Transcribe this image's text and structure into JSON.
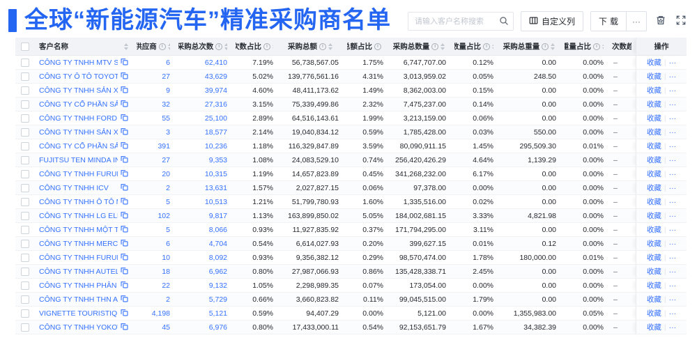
{
  "title": "全球“新能源汽车”精准采购商名单",
  "colors": {
    "accent": "#2466F2",
    "link": "#3370FF",
    "header_bg": "#f1f3f6"
  },
  "toolbar": {
    "search_placeholder": "请输入客户名称搜索",
    "customize_columns_label": "自定义列",
    "download_label": "下载",
    "more_label": "···"
  },
  "table": {
    "columns": [
      {
        "key": "name",
        "label": "客户名称",
        "info": false,
        "sort": true,
        "align": "left"
      },
      {
        "key": "suppliers",
        "label": "供应商",
        "info": true,
        "sort": true,
        "align": "right",
        "link": true
      },
      {
        "key": "purchases",
        "label": "采购总次数",
        "info": true,
        "sort": true,
        "align": "right",
        "link": true
      },
      {
        "key": "purchases_pct",
        "label": "次数占比",
        "info": true,
        "sort": true,
        "align": "right"
      },
      {
        "key": "amount",
        "label": "采购总额",
        "info": true,
        "sort": true,
        "align": "right"
      },
      {
        "key": "amount_pct",
        "label": "总额占比",
        "info": true,
        "sort": true,
        "align": "right"
      },
      {
        "key": "quantity",
        "label": "采购总数量",
        "info": true,
        "sort": true,
        "align": "right"
      },
      {
        "key": "quantity_pct",
        "label": "数量占比",
        "info": true,
        "sort": true,
        "align": "right"
      },
      {
        "key": "weight",
        "label": "采购总重量",
        "info": true,
        "sort": true,
        "align": "right"
      },
      {
        "key": "weight_pct",
        "label": "重量占比",
        "info": true,
        "sort": true,
        "align": "right"
      },
      {
        "key": "trend",
        "label": "次数趋势",
        "info": false,
        "sort": false,
        "align": "left"
      },
      {
        "key": "actions",
        "label": "操作",
        "info": false,
        "sort": false,
        "align": "center"
      }
    ],
    "row_actions": {
      "favorite_label": "收藏",
      "more_label": "···"
    },
    "rows": [
      {
        "name": "CÔNG TY TNHH MTV SẢN XUẤ...",
        "suppliers": "6",
        "purchases": "62,410",
        "purchases_pct": "7.19%",
        "amount": "56,738,567.05",
        "amount_pct": "1.75%",
        "quantity": "6,747,707.00",
        "quantity_pct": "0.12%",
        "weight": "0.00",
        "weight_pct": "0.00%",
        "trend": "–"
      },
      {
        "name": "CÔNG TY Ô TÔ TOYOTA VIỆT ...",
        "suppliers": "27",
        "purchases": "43,629",
        "purchases_pct": "5.02%",
        "amount": "139,776,561.16",
        "amount_pct": "4.31%",
        "quantity": "3,013,959.02",
        "quantity_pct": "0.05%",
        "weight": "248.50",
        "weight_pct": "0.00%",
        "trend": "–"
      },
      {
        "name": "CÔNG TY TNHH SẢN XUẤT VÀ ...",
        "suppliers": "9",
        "purchases": "39,974",
        "purchases_pct": "4.60%",
        "amount": "48,411,173.62",
        "amount_pct": "1.49%",
        "quantity": "8,362,003.00",
        "quantity_pct": "0.15%",
        "weight": "0.00",
        "weight_pct": "0.00%",
        "trend": "–"
      },
      {
        "name": "CÔNG TY CỔ PHẦN SẢN XUẤT...",
        "suppliers": "32",
        "purchases": "27,316",
        "purchases_pct": "3.15%",
        "amount": "75,339,499.86",
        "amount_pct": "2.32%",
        "quantity": "7,475,237.00",
        "quantity_pct": "0.14%",
        "weight": "0.00",
        "weight_pct": "0.00%",
        "trend": "–"
      },
      {
        "name": "CÔNG TY TNHH FORD VIỆT NAM",
        "suppliers": "55",
        "purchases": "25,100",
        "purchases_pct": "2.89%",
        "amount": "64,516,143.61",
        "amount_pct": "1.99%",
        "quantity": "3,213,159.00",
        "quantity_pct": "0.06%",
        "weight": "0.00",
        "weight_pct": "0.00%",
        "trend": "–"
      },
      {
        "name": "CÔNG TY TNHH SẢN XUẤT VÀ ...",
        "suppliers": "3",
        "purchases": "18,577",
        "purchases_pct": "2.14%",
        "amount": "19,040,834.12",
        "amount_pct": "0.59%",
        "quantity": "1,785,428.00",
        "quantity_pct": "0.03%",
        "weight": "550.00",
        "weight_pct": "0.00%",
        "trend": "–"
      },
      {
        "name": "CÔNG TY CỔ PHẦN SẢN XUẤT...",
        "suppliers": "391",
        "purchases": "10,236",
        "purchases_pct": "1.18%",
        "amount": "116,329,847.89",
        "amount_pct": "3.59%",
        "quantity": "80,090,911.15",
        "quantity_pct": "1.45%",
        "weight": "295,509.30",
        "weight_pct": "0.01%",
        "trend": "–"
      },
      {
        "name": "FUJITSU TEN MINDA INDIA PVT...",
        "suppliers": "27",
        "purchases": "9,353",
        "purchases_pct": "1.08%",
        "amount": "24,083,529.10",
        "amount_pct": "0.74%",
        "quantity": "256,420,426.29",
        "quantity_pct": "4.64%",
        "weight": "1,139.29",
        "weight_pct": "0.00%",
        "trend": "–"
      },
      {
        "name": "CÔNG TY TNHH FURUKAWA A...",
        "suppliers": "20",
        "purchases": "10,315",
        "purchases_pct": "1.19%",
        "amount": "14,657,823.89",
        "amount_pct": "0.45%",
        "quantity": "341,268,232.00",
        "quantity_pct": "6.17%",
        "weight": "0.00",
        "weight_pct": "0.00%",
        "trend": "–"
      },
      {
        "name": "CÔNG TY TNHH ICV",
        "suppliers": "2",
        "purchases": "13,631",
        "purchases_pct": "1.57%",
        "amount": "2,027,827.15",
        "amount_pct": "0.06%",
        "quantity": "97,378.00",
        "quantity_pct": "0.00%",
        "weight": "0.00",
        "weight_pct": "0.00%",
        "trend": "–"
      },
      {
        "name": "CÔNG TY TNHH Ô TÔ MITSUBI...",
        "suppliers": "5",
        "purchases": "10,513",
        "purchases_pct": "1.21%",
        "amount": "51,799,780.93",
        "amount_pct": "1.60%",
        "quantity": "1,335,516.00",
        "quantity_pct": "0.02%",
        "weight": "0.00",
        "weight_pct": "0.00%",
        "trend": "–"
      },
      {
        "name": "CÔNG TY TNHH LG ELECTRON...",
        "suppliers": "102",
        "purchases": "9,817",
        "purchases_pct": "1.13%",
        "amount": "163,899,850.02",
        "amount_pct": "5.05%",
        "quantity": "184,002,681.15",
        "quantity_pct": "3.33%",
        "weight": "4,821.98",
        "weight_pct": "0.00%",
        "trend": "–"
      },
      {
        "name": "CÔNG TY TNHH MỘT THÀNH V...",
        "suppliers": "5",
        "purchases": "8,066",
        "purchases_pct": "0.93%",
        "amount": "11,927,835.92",
        "amount_pct": "0.37%",
        "quantity": "171,794,295.00",
        "quantity_pct": "3.11%",
        "weight": "0.00",
        "weight_pct": "0.00%",
        "trend": "–"
      },
      {
        "name": "CÔNG TY TNHH MERCEDES-B...",
        "suppliers": "6",
        "purchases": "4,704",
        "purchases_pct": "0.54%",
        "amount": "6,614,027.93",
        "amount_pct": "0.20%",
        "quantity": "399,627.15",
        "quantity_pct": "0.01%",
        "weight": "0.12",
        "weight_pct": "0.00%",
        "trend": "–"
      },
      {
        "name": "CÔNG TY TNHH FURUKAWA A...",
        "suppliers": "10",
        "purchases": "8,092",
        "purchases_pct": "0.93%",
        "amount": "9,356,382.12",
        "amount_pct": "0.29%",
        "quantity": "98,570,474.00",
        "quantity_pct": "1.78%",
        "weight": "180,000.00",
        "weight_pct": "0.01%",
        "trend": "–"
      },
      {
        "name": "CÔNG TY TNHH AUTEL VIỆT N...",
        "suppliers": "18",
        "purchases": "6,962",
        "purchases_pct": "0.80%",
        "amount": "27,987,066.93",
        "amount_pct": "0.86%",
        "quantity": "135,428,338.71",
        "quantity_pct": "2.45%",
        "weight": "0.00",
        "weight_pct": "0.00%",
        "trend": "–"
      },
      {
        "name": "CÔNG TY TNHH PHÂN PHỐI T...",
        "suppliers": "22",
        "purchases": "9,132",
        "purchases_pct": "1.05%",
        "amount": "2,298,989.35",
        "amount_pct": "0.07%",
        "quantity": "173,054.00",
        "quantity_pct": "0.00%",
        "weight": "0.00",
        "weight_pct": "0.00%",
        "trend": "–"
      },
      {
        "name": "CÔNG TY TNHH THN AUTOPAR...",
        "suppliers": "2",
        "purchases": "5,729",
        "purchases_pct": "0.66%",
        "amount": "3,660,823.82",
        "amount_pct": "0.11%",
        "quantity": "99,045,515.00",
        "quantity_pct": "1.79%",
        "weight": "0.00",
        "weight_pct": "0.00%",
        "trend": "–"
      },
      {
        "name": "VIGNETTE TOURISTIQUE G UNI...",
        "suppliers": "4,198",
        "purchases": "5,121",
        "purchases_pct": "0.59%",
        "amount": "94,407.29",
        "amount_pct": "0.00%",
        "quantity": "5,121.00",
        "quantity_pct": "0.00%",
        "weight": "1,355,983.00",
        "weight_pct": "0.05%",
        "trend": "–"
      },
      {
        "name": "CÔNG TY TNHH YOKOWO VIỆT...",
        "suppliers": "45",
        "purchases": "6,976",
        "purchases_pct": "0.80%",
        "amount": "17,433,000.11",
        "amount_pct": "0.54%",
        "quantity": "92,153,651.79",
        "quantity_pct": "1.67%",
        "weight": "34,382.39",
        "weight_pct": "0.00%",
        "trend": "–"
      }
    ]
  }
}
